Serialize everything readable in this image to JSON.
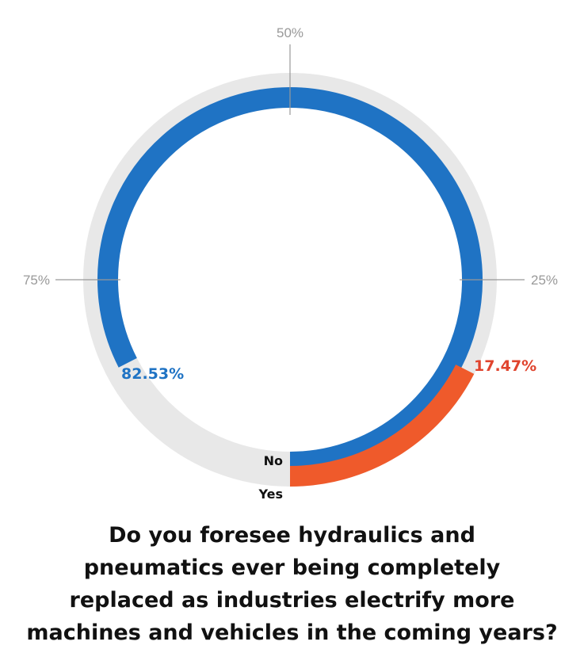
{
  "chart_data": {
    "type": "pie",
    "style": "radial-ring",
    "grid": true,
    "axis_ticks": [
      "25%",
      "50%",
      "75%"
    ],
    "series": [
      {
        "name": "No",
        "value": 82.53,
        "value_label": "82.53%",
        "color": "#1f73c4"
      },
      {
        "name": "Yes",
        "value": 17.47,
        "value_label": "17.47%",
        "color": "#ef5a2b"
      }
    ],
    "track_color": "#e8e8e8",
    "title_lines": [
      "Do you foresee hydraulics and",
      "pneumatics ever being completely",
      "replaced as industries electrify more",
      "machines and vehicles in the coming years?"
    ]
  },
  "colors": {
    "no_label": "#1f73c4",
    "yes_label": "#e0442e",
    "tick_line": "#999999"
  }
}
